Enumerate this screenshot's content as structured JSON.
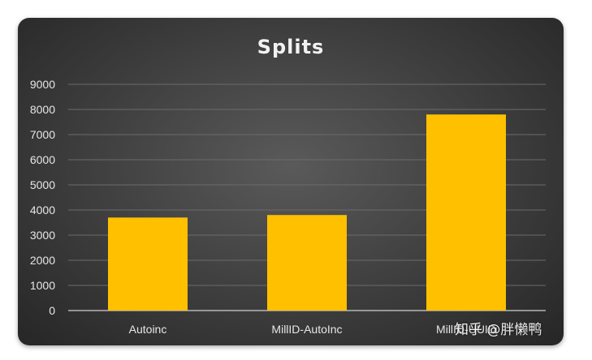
{
  "chart_data": {
    "type": "bar",
    "title": "Splits",
    "categories": [
      "Autoinc",
      "MillID-AutoInc",
      "MillID-UUID"
    ],
    "values": [
      3700,
      3800,
      7800
    ],
    "ylim": [
      0,
      9000
    ],
    "yticks": [
      0,
      1000,
      2000,
      3000,
      4000,
      5000,
      6000,
      7000,
      8000,
      9000
    ],
    "grid": true,
    "bar_color": "#FFC000",
    "background_color": "#3d3d3d"
  },
  "watermark": "知乎 @胖懒鸭"
}
